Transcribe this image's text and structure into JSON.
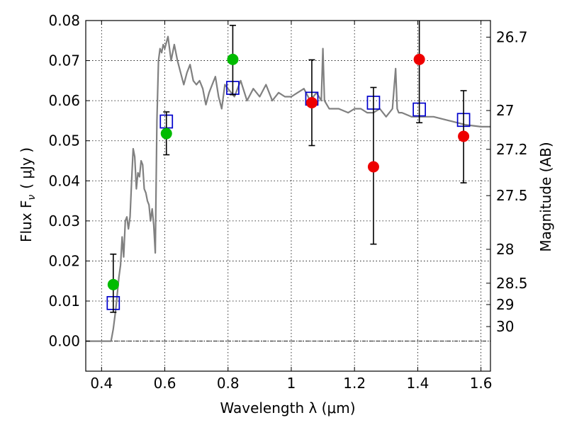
{
  "chart_data": {
    "type": "scatter",
    "title": "",
    "xlabel": "Wavelength  λ (μm)",
    "ylabel": "Flux  F",
    "ylabel_sub": "ν",
    "ylabel_unit": "( μJy )",
    "y2label": "Magnitude (AB)",
    "xlim": [
      0.35,
      1.63
    ],
    "ylim": [
      -0.0075,
      0.08
    ],
    "grid": true,
    "x_ticks": [
      0.4,
      0.6,
      0.8,
      1.0,
      1.2,
      1.4,
      1.6
    ],
    "x_tick_labels": [
      "0.4",
      "0.6",
      "0.8",
      "1",
      "1.2",
      "1.4",
      "1.6"
    ],
    "y_ticks": [
      0.0,
      0.01,
      0.02,
      0.03,
      0.04,
      0.05,
      0.06,
      0.07,
      0.08
    ],
    "y_tick_labels": [
      "0.00",
      "0.01",
      "0.02",
      "0.03",
      "0.04",
      "0.05",
      "0.06",
      "0.07",
      "0.08"
    ],
    "mag_ticks": [
      26.7,
      27,
      27.2,
      27.5,
      28,
      28.5,
      29,
      30
    ],
    "mag_tick_labels": [
      "26.7",
      "27",
      "27.2",
      "27.5",
      "28",
      "28.5",
      "29",
      "30"
    ],
    "series": [
      {
        "kind": "line",
        "color": "#808080",
        "x": [
          0.35,
          0.43,
          0.437,
          0.445,
          0.455,
          0.46,
          0.465,
          0.47,
          0.475,
          0.48,
          0.485,
          0.49,
          0.495,
          0.5,
          0.505,
          0.51,
          0.515,
          0.52,
          0.525,
          0.53,
          0.535,
          0.54,
          0.545,
          0.55,
          0.555,
          0.56,
          0.565,
          0.57,
          0.575,
          0.58,
          0.585,
          0.59,
          0.595,
          0.6,
          0.61,
          0.62,
          0.63,
          0.64,
          0.65,
          0.66,
          0.67,
          0.68,
          0.69,
          0.7,
          0.71,
          0.72,
          0.73,
          0.74,
          0.75,
          0.76,
          0.77,
          0.78,
          0.79,
          0.8,
          0.82,
          0.84,
          0.86,
          0.88,
          0.9,
          0.92,
          0.94,
          0.96,
          0.98,
          1.0,
          1.02,
          1.04,
          1.06,
          1.08,
          1.095,
          1.1,
          1.105,
          1.12,
          1.15,
          1.18,
          1.2,
          1.22,
          1.24,
          1.26,
          1.28,
          1.3,
          1.32,
          1.33,
          1.335,
          1.34,
          1.35,
          1.38,
          1.4,
          1.45,
          1.5,
          1.55,
          1.6,
          1.63
        ],
        "y": [
          0.0,
          0.0,
          0.003,
          0.008,
          0.016,
          0.019,
          0.026,
          0.021,
          0.03,
          0.031,
          0.028,
          0.031,
          0.04,
          0.048,
          0.046,
          0.038,
          0.042,
          0.041,
          0.045,
          0.044,
          0.038,
          0.037,
          0.035,
          0.034,
          0.03,
          0.033,
          0.029,
          0.022,
          0.055,
          0.07,
          0.073,
          0.072,
          0.074,
          0.073,
          0.076,
          0.07,
          0.074,
          0.07,
          0.067,
          0.064,
          0.067,
          0.069,
          0.065,
          0.064,
          0.065,
          0.063,
          0.059,
          0.062,
          0.064,
          0.066,
          0.061,
          0.058,
          0.064,
          0.063,
          0.061,
          0.065,
          0.06,
          0.063,
          0.061,
          0.064,
          0.06,
          0.062,
          0.061,
          0.061,
          0.062,
          0.063,
          0.06,
          0.062,
          0.06,
          0.073,
          0.06,
          0.058,
          0.058,
          0.057,
          0.058,
          0.058,
          0.057,
          0.057,
          0.058,
          0.056,
          0.058,
          0.068,
          0.058,
          0.057,
          0.057,
          0.056,
          0.056,
          0.056,
          0.055,
          0.054,
          0.0535,
          0.0535
        ]
      },
      {
        "kind": "open-square",
        "color": "#0000cc",
        "x": [
          0.437,
          0.605,
          0.815,
          1.065,
          1.26,
          1.405,
          1.545
        ],
        "y": [
          0.0095,
          0.0548,
          0.0632,
          0.0605,
          0.0595,
          0.0578,
          0.0552
        ]
      },
      {
        "kind": "filled-circle",
        "color": "#00bb00",
        "x": [
          0.437,
          0.605,
          0.815
        ],
        "y": [
          0.0141,
          0.0518,
          0.0703
        ],
        "yerr_low": [
          0.0072,
          0.0465,
          0.0615
        ],
        "yerr_high": [
          0.0217,
          0.0572,
          0.0788
        ]
      },
      {
        "kind": "filled-circle",
        "color": "#ee0000",
        "x": [
          1.065,
          1.26,
          1.405,
          1.545
        ],
        "y": [
          0.0595,
          0.0435,
          0.0703,
          0.0511
        ],
        "yerr_low": [
          0.0488,
          0.0242,
          0.0545,
          0.0395
        ],
        "yerr_high": [
          0.0702,
          0.0633,
          0.0805,
          0.0625
        ]
      }
    ]
  }
}
